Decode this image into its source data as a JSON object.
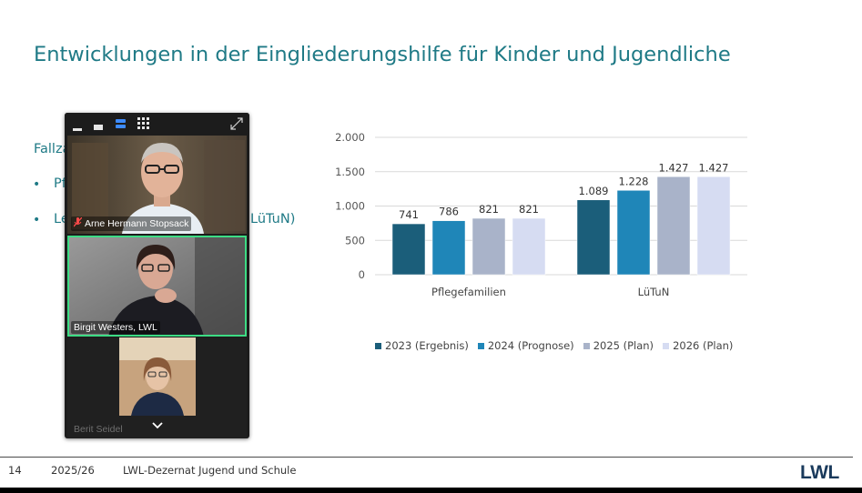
{
  "slide": {
    "title": "Entwicklungen in der Eingliederungshilfe für Kinder und Jugendliche",
    "body_heading_visible": "Fallza",
    "bullets": [
      {
        "symbol": "•",
        "text": "Pf"
      },
      {
        "symbol": "•",
        "text": "Le",
        "tail": "LüTuN)"
      }
    ]
  },
  "chart_data": {
    "type": "bar",
    "categories": [
      "Pflegefamilien",
      "LüTuN"
    ],
    "series": [
      {
        "name": "2023 (Ergebnis)",
        "values": [
          741,
          1089
        ],
        "labels": [
          "741",
          "1.089"
        ],
        "color": "#1b5e7a"
      },
      {
        "name": "2024 (Prognose)",
        "values": [
          786,
          1228
        ],
        "labels": [
          "786",
          "1.228"
        ],
        "color": "#1f86b8"
      },
      {
        "name": "2025 (Plan)",
        "values": [
          821,
          1427
        ],
        "labels": [
          "821",
          "1.427"
        ],
        "color": "#a9b3c9"
      },
      {
        "name": "2026 (Plan)",
        "values": [
          821,
          1427
        ],
        "labels": [
          "821",
          "1.427"
        ],
        "color": "#d6dcf2"
      }
    ],
    "yticks": [
      0,
      500,
      1000,
      1500,
      2000
    ],
    "ytick_labels": [
      "0",
      "500",
      "1.000",
      "1.500",
      "2.000"
    ],
    "ylim": [
      0,
      2000
    ],
    "grid": true,
    "legend_position": "bottom"
  },
  "call": {
    "toolbar_icons": [
      "minimize-view-icon",
      "strip-view-icon",
      "speaker-view-icon",
      "gallery-view-icon",
      "expand-icon"
    ],
    "participants": [
      {
        "name": "Arne Hermann Stopsack",
        "muted": true,
        "active": false
      },
      {
        "name": "Birgit Westers, LWL",
        "muted": false,
        "active": true
      },
      {
        "name": "Berit Seidel",
        "muted": false,
        "active": false
      }
    ],
    "scroll_icon": "chevron-down-icon"
  },
  "footer": {
    "page_number": "14",
    "year": "2025/26",
    "department": "LWL-Dezernat Jugend und Schule",
    "logo": "LWL"
  }
}
